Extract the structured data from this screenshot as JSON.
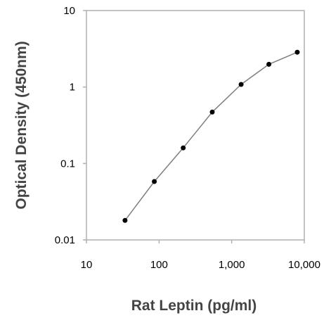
{
  "chart_data": {
    "type": "line",
    "xlabel": "Rat Leptin (pg/ml)",
    "ylabel": "Optical Density (450nm)",
    "x_scale": "log",
    "y_scale": "log",
    "xlim": [
      10,
      10000
    ],
    "ylim": [
      0.01,
      10
    ],
    "x_ticks": [
      10,
      100,
      1000,
      10000
    ],
    "x_tick_labels": [
      "10",
      "100",
      "1,000",
      "10,000"
    ],
    "y_ticks": [
      0.01,
      0.1,
      1,
      10
    ],
    "y_tick_labels": [
      "0.01",
      "0.1",
      "1",
      "10"
    ],
    "grid": false,
    "legend": "none",
    "series": [
      {
        "x": [
          34,
          86,
          215,
          540,
          1350,
          3250,
          8000
        ],
        "y": [
          0.018,
          0.058,
          0.16,
          0.47,
          1.08,
          1.98,
          2.85
        ],
        "line_color": "#7f7f7f",
        "marker_color": "#000000"
      }
    ]
  }
}
